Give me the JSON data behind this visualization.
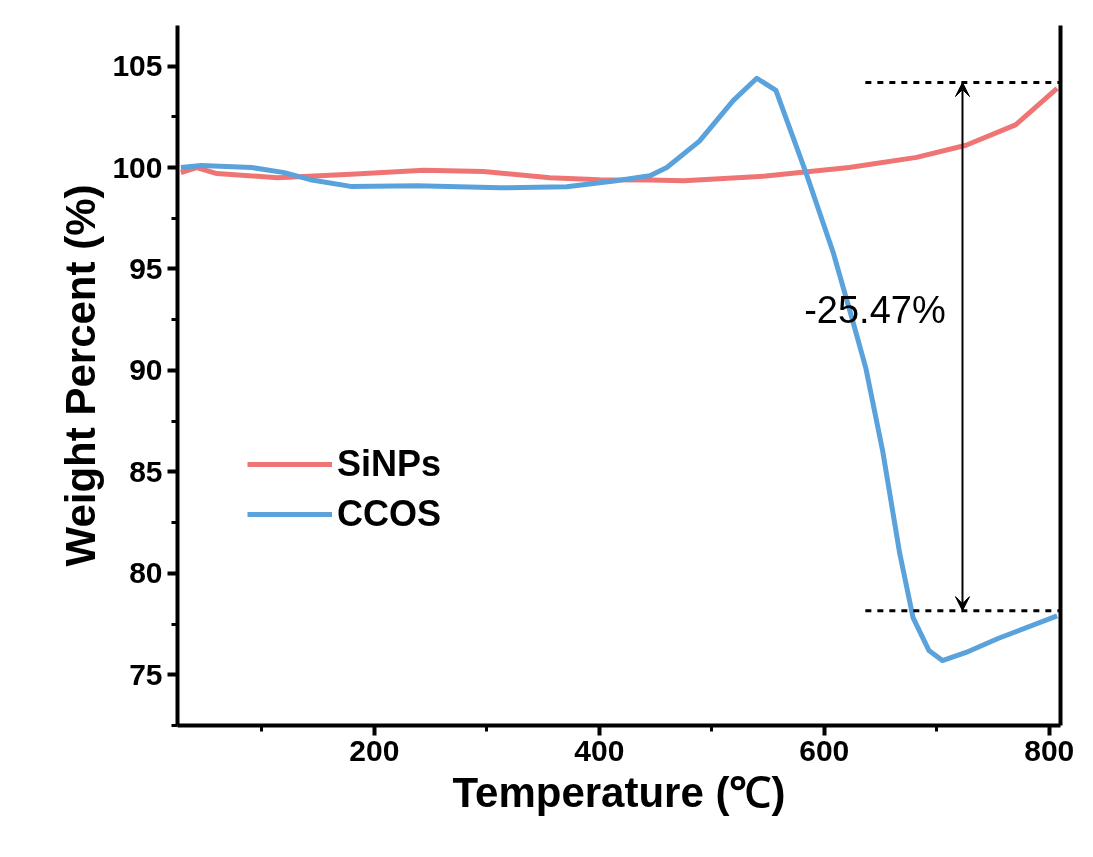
{
  "chart_data": {
    "type": "line",
    "xlabel": "Temperature (℃)",
    "ylabel": "Weight Percent (%)",
    "xlim": [
      25,
      810
    ],
    "ylim": [
      72.5,
      107
    ],
    "xticks": [
      200,
      400,
      600,
      800
    ],
    "yticks": [
      75,
      80,
      85,
      90,
      95,
      100,
      105
    ],
    "grid": false,
    "legend": "left",
    "line_style": "solid",
    "marker": "none",
    "series": [
      {
        "name": "SiNPs",
        "color": "#ef7575",
        "x": [
          28,
          42,
          60,
          114,
          179,
          244,
          297,
          356,
          400,
          445,
          475,
          548,
          622,
          682,
          726,
          770,
          807
        ],
        "values": [
          99.75,
          100.0,
          99.7,
          99.5,
          99.67,
          99.87,
          99.8,
          99.5,
          99.4,
          99.38,
          99.35,
          99.58,
          100.0,
          100.5,
          101.1,
          102.1,
          103.9
        ]
      },
      {
        "name": "CCOS",
        "color": "#5aa2dc",
        "x": [
          28,
          46,
          91,
          120,
          143,
          179,
          238,
          312,
          371,
          415,
          445,
          460,
          489,
          519,
          540,
          557,
          584,
          608,
          625,
          637,
          652,
          667,
          679,
          693,
          705,
          726,
          755,
          807
        ],
        "values": [
          100.0,
          100.1,
          100.0,
          99.75,
          99.4,
          99.07,
          99.1,
          99.0,
          99.05,
          99.35,
          99.6,
          100.0,
          101.3,
          103.3,
          104.4,
          103.8,
          99.7,
          95.8,
          92.5,
          90.1,
          86.0,
          81.0,
          77.8,
          76.2,
          75.7,
          76.1,
          76.8,
          77.9
        ]
      }
    ],
    "ref_lines": [
      {
        "axis": "y",
        "value": 104.19,
        "line_style": "dashed",
        "color": "#000000"
      },
      {
        "axis": "y",
        "value": 78.16,
        "line_style": "dashed",
        "color": "#000000"
      }
    ],
    "annotations": [
      "-25.47%"
    ]
  }
}
